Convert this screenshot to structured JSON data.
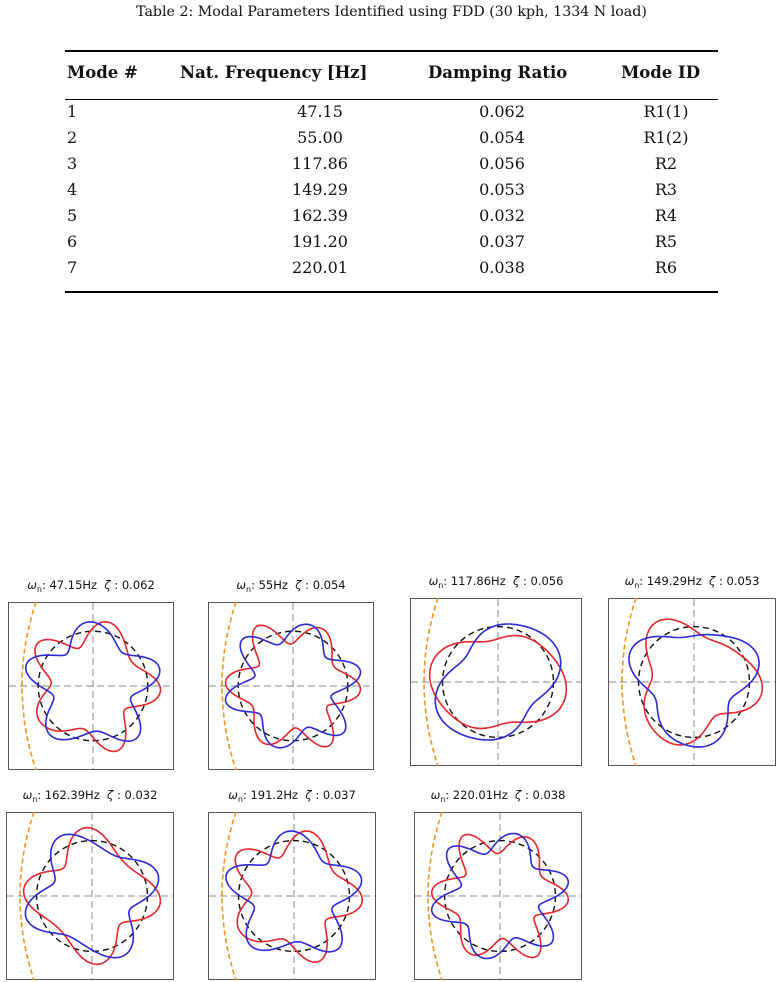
{
  "caption": "Table 2: Modal Parameters Identified using FDD (30 kph, 1334 N load)",
  "table": {
    "headers": [
      "Mode #",
      "Nat. Frequency [Hz]",
      "Damping Ratio",
      "Mode ID"
    ],
    "rows": [
      [
        "1",
        "47.15",
        "0.062",
        "R1(1)"
      ],
      [
        "2",
        "55.00",
        "0.054",
        "R1(2)"
      ],
      [
        "3",
        "117.86",
        "0.056",
        "R2"
      ],
      [
        "4",
        "149.29",
        "0.053",
        "R3"
      ],
      [
        "5",
        "162.39",
        "0.032",
        "R4"
      ],
      [
        "6",
        "191.20",
        "0.037",
        "R5"
      ],
      [
        "7",
        "220.01",
        "0.038",
        "R6"
      ]
    ]
  },
  "plots": [
    {
      "omega_symbol": "ω",
      "omega_sub": "n",
      "freq": ": 47.15Hz",
      "zeta_symbol": "ζ",
      "damp": ": 0.062",
      "lobes": 5
    },
    {
      "omega_symbol": "ω",
      "omega_sub": "n",
      "freq": ": 55Hz",
      "zeta_symbol": "ζ",
      "damp": ": 0.054",
      "lobes": 6
    },
    {
      "omega_symbol": "ω",
      "omega_sub": "n",
      "freq": ": 117.86Hz",
      "zeta_symbol": "ζ",
      "damp": ": 0.056",
      "lobes": 2
    },
    {
      "omega_symbol": "ω",
      "omega_sub": "n",
      "freq": ": 149.29Hz",
      "zeta_symbol": "ζ",
      "damp": ": 0.053",
      "lobes": 3
    },
    {
      "omega_symbol": "ω",
      "omega_sub": "n",
      "freq": ": 162.39Hz",
      "zeta_symbol": "ζ",
      "damp": ": 0.032",
      "lobes": 4
    },
    {
      "omega_symbol": "ω",
      "omega_sub": "n",
      "freq": ": 191.2Hz",
      "zeta_symbol": "ζ",
      "damp": ": 0.037",
      "lobes": 5
    },
    {
      "omega_symbol": "ω",
      "omega_sub": "n",
      "freq": ": 220.01Hz",
      "zeta_symbol": "ζ",
      "damp": ": 0.038",
      "lobes": 6
    }
  ],
  "colors": {
    "mode_a": "#e8262a",
    "mode_b": "#2a2ad8",
    "reference": "#111111",
    "ground": "#f0961e",
    "axis": "#888888"
  }
}
